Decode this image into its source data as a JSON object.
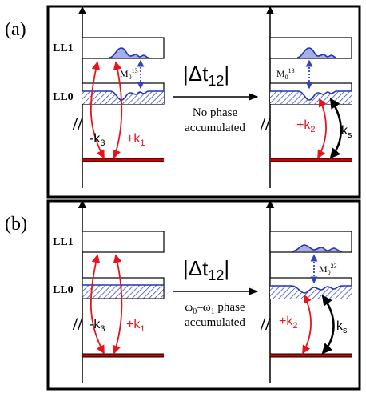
{
  "colors": {
    "frame": "#000000",
    "red_arrow": "#e8141c",
    "ground_level": "#cc0000",
    "blue_signal": "#2233bb",
    "dotted_arrow": "#3344bb",
    "hatch": "#3b50c0",
    "black_arrow": "#000000"
  },
  "panels": [
    {
      "id": "a",
      "panel_label": "(a)",
      "level_ll1": "LL1",
      "level_ll0": "LL0",
      "left_k3": "-k",
      "left_k3_sub": "3",
      "left_k1": "+k",
      "left_k1_sub": "1",
      "left_has_ll1_signal": true,
      "left_has_ll0_hole": true,
      "left_m_label": "M",
      "left_m_sub": "0",
      "left_m_sup": "13",
      "dt_left": "|",
      "dt_delta": "Δt",
      "dt_sub": "12",
      "dt_right": "|",
      "caption_line1": "No phase",
      "caption_line2": "accumulated",
      "caption_line1_sub1": "",
      "caption_line1_mid": "",
      "caption_line1_sub2": "",
      "caption_line1_tail": "",
      "right_m_label": "M",
      "right_m_sub": "0",
      "right_m_sup": "13",
      "right_k2": "+k",
      "right_k2_sub": "2",
      "right_ks": "k",
      "right_ks_sub": "s"
    },
    {
      "id": "b",
      "panel_label": "(b)",
      "level_ll1": "LL1",
      "level_ll0": "LL0",
      "left_k3": "-k",
      "left_k3_sub": "3",
      "left_k1": "+k",
      "left_k1_sub": "1",
      "left_has_ll1_signal": false,
      "left_has_ll0_hole": false,
      "left_m_label": "",
      "left_m_sub": "",
      "left_m_sup": "",
      "dt_left": "|",
      "dt_delta": "Δt",
      "dt_sub": "12",
      "dt_right": "|",
      "caption_line1": "ω",
      "caption_line2": "accumulated",
      "caption_line1_sub1": "0",
      "caption_line1_mid": "–ω",
      "caption_line1_sub2": "1",
      "caption_line1_tail": " phase",
      "right_m_label": "M",
      "right_m_sub": "0",
      "right_m_sup": "23",
      "right_k2": "+k",
      "right_k2_sub": "2",
      "right_ks": "k",
      "right_ks_sub": "s"
    }
  ]
}
